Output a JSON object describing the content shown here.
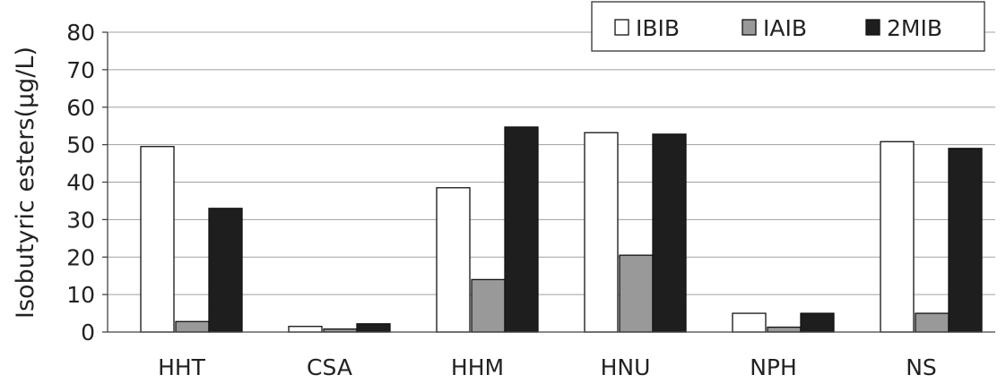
{
  "chart_data": {
    "type": "bar",
    "title": "",
    "xlabel": "",
    "ylabel": "Isobutyric esters(μg/L)",
    "ylim": [
      0,
      80
    ],
    "yticks": [
      "0",
      "10",
      "20",
      "30",
      "40",
      "50",
      "60",
      "70",
      "80"
    ],
    "grid": true,
    "legend_position": "top-right",
    "categories": [
      "HHT",
      "CSA",
      "HHM",
      "HNU",
      "NPH",
      "NS"
    ],
    "series": [
      {
        "name": "IBIB",
        "color": "#ffffff",
        "values": [
          49.5,
          1.5,
          38.5,
          53.2,
          5.0,
          50.8
        ]
      },
      {
        "name": "IAIB",
        "color": "#999999",
        "values": [
          2.8,
          0.8,
          14.0,
          20.5,
          1.3,
          5.0
        ]
      },
      {
        "name": "2MIB",
        "color": "#1e1e1e",
        "values": [
          33.0,
          2.2,
          54.7,
          52.8,
          5.0,
          49.0
        ]
      }
    ]
  }
}
